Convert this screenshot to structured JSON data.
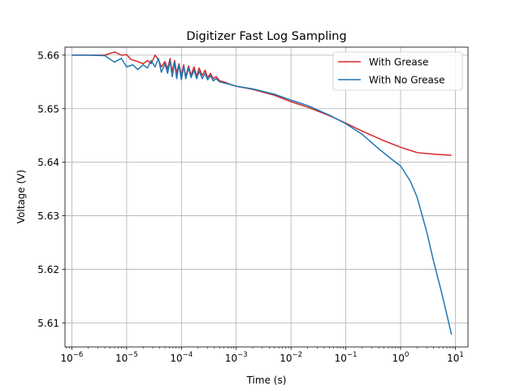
{
  "chart_data": {
    "type": "line",
    "title": "Digitizer Fast Log Sampling",
    "xlabel": "Time (s)",
    "ylabel": "Voltage (V)",
    "xscale": "log",
    "xlim": [
      7.5e-07,
      17
    ],
    "ylim": [
      5.6055,
      5.6615
    ],
    "grid": true,
    "legend_position": "top-right",
    "x_ticks": [
      {
        "value": 1e-06,
        "base": "10",
        "exp": "−6"
      },
      {
        "value": 1e-05,
        "base": "10",
        "exp": "−5"
      },
      {
        "value": 0.0001,
        "base": "10",
        "exp": "−4"
      },
      {
        "value": 0.001,
        "base": "10",
        "exp": "−3"
      },
      {
        "value": 0.01,
        "base": "10",
        "exp": "−2"
      },
      {
        "value": 0.1,
        "base": "10",
        "exp": "−1"
      },
      {
        "value": 1,
        "base": "10",
        "exp": "0"
      },
      {
        "value": 10,
        "base": "10",
        "exp": "1"
      }
    ],
    "y_ticks": [
      {
        "value": 5.61,
        "label": "5.61"
      },
      {
        "value": 5.62,
        "label": "5.62"
      },
      {
        "value": 5.63,
        "label": "5.63"
      },
      {
        "value": 5.64,
        "label": "5.64"
      },
      {
        "value": 5.65,
        "label": "5.65"
      },
      {
        "value": 5.66,
        "label": "5.66"
      }
    ],
    "series": [
      {
        "name": "With Grease",
        "color": "#d62728",
        "points": [
          [
            1e-06,
            5.66
          ],
          [
            2e-06,
            5.66
          ],
          [
            4e-06,
            5.66
          ],
          [
            6e-06,
            5.6606
          ],
          [
            8e-06,
            5.66
          ],
          [
            1e-05,
            5.6601
          ],
          [
            1.2e-05,
            5.6592
          ],
          [
            1.6e-05,
            5.6588
          ],
          [
            2e-05,
            5.6584
          ],
          [
            2.4e-05,
            5.659
          ],
          [
            2.8e-05,
            5.6584
          ],
          [
            3.3e-05,
            5.66
          ],
          [
            3.8e-05,
            5.6592
          ],
          [
            4.3e-05,
            5.6578
          ],
          [
            5e-05,
            5.6588
          ],
          [
            5.6e-05,
            5.6574
          ],
          [
            6.2e-05,
            5.6594
          ],
          [
            6.8e-05,
            5.6568
          ],
          [
            7.5e-05,
            5.659
          ],
          [
            8.2e-05,
            5.6566
          ],
          [
            9e-05,
            5.6584
          ],
          [
            0.0001,
            5.6562
          ],
          [
            0.00011,
            5.6582
          ],
          [
            0.00012,
            5.656
          ],
          [
            0.000135,
            5.658
          ],
          [
            0.00015,
            5.6562
          ],
          [
            0.00017,
            5.6578
          ],
          [
            0.00019,
            5.656
          ],
          [
            0.00021,
            5.6576
          ],
          [
            0.00024,
            5.6562
          ],
          [
            0.00027,
            5.6572
          ],
          [
            0.0003,
            5.6558
          ],
          [
            0.00034,
            5.6566
          ],
          [
            0.00038,
            5.6556
          ],
          [
            0.00043,
            5.656
          ],
          [
            0.0005,
            5.6552
          ],
          [
            0.0006,
            5.655
          ],
          [
            0.0008,
            5.6545
          ],
          [
            0.001,
            5.6542
          ],
          [
            0.002,
            5.6536
          ],
          [
            0.005,
            5.6525
          ],
          [
            0.01,
            5.6513
          ],
          [
            0.02,
            5.6503
          ],
          [
            0.05,
            5.6487
          ],
          [
            0.1,
            5.6473
          ],
          [
            0.2,
            5.6458
          ],
          [
            0.5,
            5.644
          ],
          [
            1,
            5.6428
          ],
          [
            2,
            5.6418
          ],
          [
            4,
            5.6415
          ],
          [
            8.5,
            5.6413
          ]
        ]
      },
      {
        "name": "With No Grease",
        "color": "#1f77b4",
        "points": [
          [
            1e-06,
            5.66
          ],
          [
            2e-06,
            5.66
          ],
          [
            4e-06,
            5.6599
          ],
          [
            6e-06,
            5.6587
          ],
          [
            8e-06,
            5.6594
          ],
          [
            1e-05,
            5.6578
          ],
          [
            1.3e-05,
            5.6582
          ],
          [
            1.6e-05,
            5.6573
          ],
          [
            2e-05,
            5.6582
          ],
          [
            2.4e-05,
            5.6576
          ],
          [
            2.8e-05,
            5.659
          ],
          [
            3.3e-05,
            5.6578
          ],
          [
            3.8e-05,
            5.6594
          ],
          [
            4.3e-05,
            5.6568
          ],
          [
            5e-05,
            5.6584
          ],
          [
            5.6e-05,
            5.6566
          ],
          [
            6.2e-05,
            5.659
          ],
          [
            6.8e-05,
            5.656
          ],
          [
            7.5e-05,
            5.6586
          ],
          [
            8.2e-05,
            5.6556
          ],
          [
            9e-05,
            5.6582
          ],
          [
            0.0001,
            5.6554
          ],
          [
            0.00011,
            5.658
          ],
          [
            0.00012,
            5.6556
          ],
          [
            0.000135,
            5.6576
          ],
          [
            0.00015,
            5.6558
          ],
          [
            0.00017,
            5.6572
          ],
          [
            0.00019,
            5.6556
          ],
          [
            0.00021,
            5.657
          ],
          [
            0.00024,
            5.6556
          ],
          [
            0.00027,
            5.6566
          ],
          [
            0.0003,
            5.6554
          ],
          [
            0.00034,
            5.6562
          ],
          [
            0.00038,
            5.6552
          ],
          [
            0.00043,
            5.6556
          ],
          [
            0.0005,
            5.655
          ],
          [
            0.0006,
            5.6548
          ],
          [
            0.0008,
            5.6545
          ],
          [
            0.001,
            5.6542
          ],
          [
            0.002,
            5.6537
          ],
          [
            0.005,
            5.6527
          ],
          [
            0.01,
            5.6516
          ],
          [
            0.02,
            5.6506
          ],
          [
            0.05,
            5.6488
          ],
          [
            0.1,
            5.6472
          ],
          [
            0.2,
            5.6452
          ],
          [
            0.4,
            5.6425
          ],
          [
            0.7,
            5.6405
          ],
          [
            1,
            5.6393
          ],
          [
            1.5,
            5.6365
          ],
          [
            2,
            5.6335
          ],
          [
            3,
            5.627
          ],
          [
            4,
            5.6215
          ],
          [
            5.5,
            5.616
          ],
          [
            7,
            5.6115
          ],
          [
            8.5,
            5.6078
          ]
        ]
      }
    ]
  }
}
